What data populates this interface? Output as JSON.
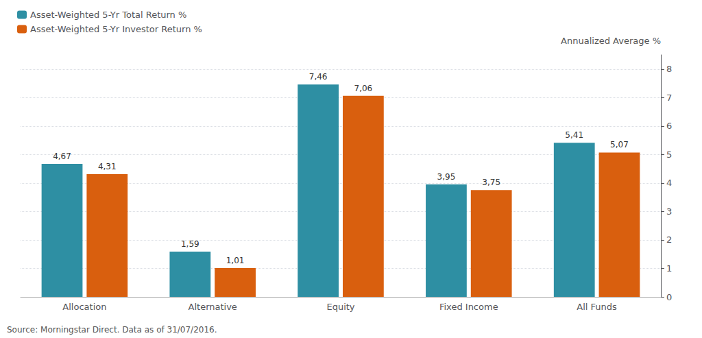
{
  "chart_data": {
    "type": "bar",
    "categories": [
      "Allocation",
      "Alternative",
      "Equity",
      "Fixed Income",
      "All Funds"
    ],
    "series": [
      {
        "name": "Asset-Weighted 5-Yr Total Return %",
        "color": "#2E8FA3",
        "values": [
          4.67,
          1.59,
          7.46,
          3.95,
          5.41
        ],
        "value_labels": [
          "4,67",
          "1,59",
          "7,46",
          "3,95",
          "5,41"
        ]
      },
      {
        "name": "Asset-Weighted 5-Yr Investor Return %",
        "color": "#D95F0E",
        "values": [
          4.31,
          1.01,
          7.06,
          3.75,
          5.07
        ],
        "value_labels": [
          "4,31",
          "1,01",
          "7,06",
          "3,75",
          "5,07"
        ]
      }
    ],
    "ylabel": "Annualized Average %",
    "annotations": [
      "Source: Morningstar Direct. Data as of 31/07/2016."
    ],
    "ylim": [
      0,
      8.5
    ],
    "yticks": [
      0,
      1,
      2,
      3,
      4,
      5,
      6,
      7,
      8
    ],
    "grid": true,
    "legend": "upper left",
    "data_labels": true
  }
}
